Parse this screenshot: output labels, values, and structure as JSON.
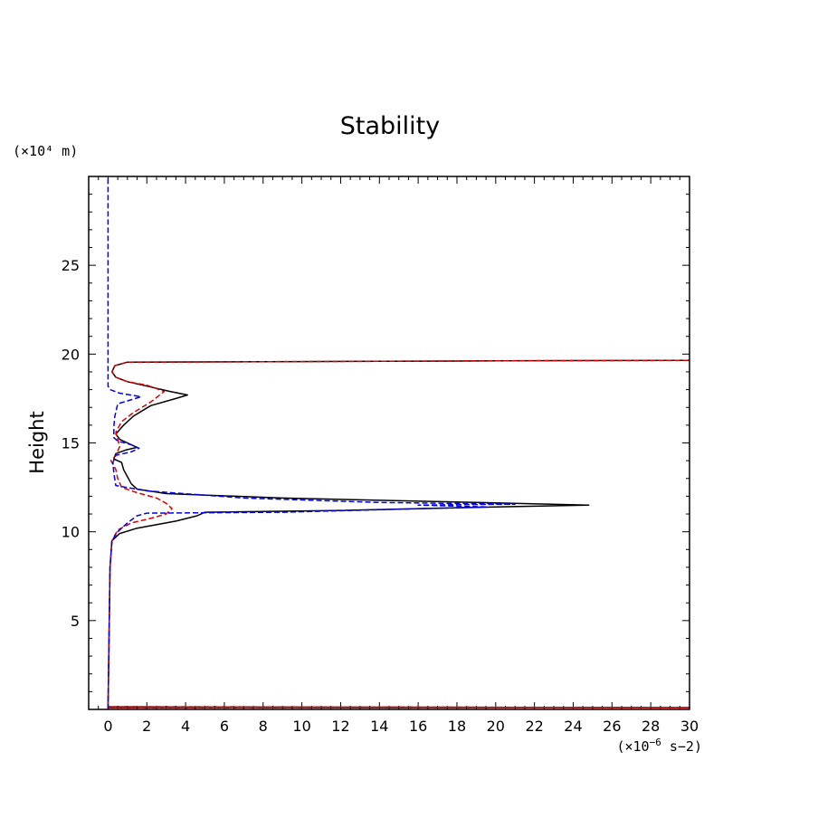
{
  "chart_data": {
    "type": "line",
    "title": "Stability",
    "ylabel": "Height",
    "xlabel": "",
    "y_unit": "(×10⁴ m)",
    "x_unit_prefix": "(×10",
    "x_unit_exp": "−6",
    "x_unit_suffix": " s−2)",
    "xlim": [
      -1,
      30
    ],
    "ylim": [
      0,
      30
    ],
    "x_ticks": [
      0,
      2,
      4,
      6,
      8,
      10,
      12,
      14,
      16,
      18,
      20,
      22,
      24,
      26,
      28,
      30
    ],
    "y_ticks": [
      5,
      10,
      15,
      20,
      25
    ],
    "grid": false,
    "series": [
      {
        "style": "solid",
        "color": "#000000",
        "points": [
          [
            0,
            0
          ],
          [
            0,
            0.1
          ],
          [
            30,
            0.1
          ],
          [
            0,
            0.15
          ],
          [
            0.1,
            8
          ],
          [
            0.2,
            9.5
          ],
          [
            0.6,
            9.9
          ],
          [
            1.5,
            10.2
          ],
          [
            3.5,
            10.6
          ],
          [
            4.6,
            10.9
          ],
          [
            5,
            11.1
          ],
          [
            12,
            11.2
          ],
          [
            20,
            11.4
          ],
          [
            24.8,
            11.5
          ],
          [
            19,
            11.65
          ],
          [
            9,
            11.9
          ],
          [
            3,
            12.15
          ],
          [
            1.5,
            12.4
          ],
          [
            1.2,
            12.7
          ],
          [
            0.8,
            13.5
          ],
          [
            0.7,
            13.9
          ],
          [
            0.3,
            14.1
          ],
          [
            0.4,
            14.4
          ],
          [
            0.9,
            14.6
          ],
          [
            1.5,
            14.75
          ],
          [
            1.1,
            14.95
          ],
          [
            0.6,
            15.2
          ],
          [
            0.4,
            15.5
          ],
          [
            0.8,
            16
          ],
          [
            1.3,
            16.5
          ],
          [
            2.2,
            17.1
          ],
          [
            3.5,
            17.5
          ],
          [
            4.1,
            17.7
          ],
          [
            3.2,
            17.9
          ],
          [
            2,
            18.2
          ],
          [
            1,
            18.45
          ],
          [
            0.4,
            18.7
          ],
          [
            0.2,
            19
          ],
          [
            0.35,
            19.35
          ],
          [
            1,
            19.55
          ],
          [
            10,
            19.58
          ],
          [
            20,
            19.62
          ],
          [
            30,
            19.65
          ]
        ]
      },
      {
        "style": "dashed",
        "color": "#dd0000",
        "points": [
          [
            0,
            0
          ],
          [
            0,
            0.1
          ],
          [
            15,
            0.13
          ],
          [
            30,
            0.1
          ],
          [
            0,
            0.15
          ],
          [
            0.1,
            8
          ],
          [
            0.2,
            9.5
          ],
          [
            0.5,
            10.1
          ],
          [
            1.2,
            10.5
          ],
          [
            2.2,
            10.75
          ],
          [
            3,
            11
          ],
          [
            3.3,
            11.3
          ],
          [
            3,
            11.6
          ],
          [
            2.5,
            11.9
          ],
          [
            1.5,
            12.2
          ],
          [
            0.7,
            12.5
          ],
          [
            0.5,
            13
          ],
          [
            0.4,
            13.5
          ],
          [
            0.15,
            14
          ],
          [
            0.4,
            14.3
          ],
          [
            0.6,
            14.8
          ],
          [
            0.5,
            15.2
          ],
          [
            0.4,
            15.6
          ],
          [
            0.7,
            16.2
          ],
          [
            1.3,
            16.7
          ],
          [
            2.2,
            17.3
          ],
          [
            2.9,
            17.9
          ],
          [
            2,
            18.25
          ],
          [
            1,
            18.45
          ],
          [
            0.4,
            18.7
          ],
          [
            0.2,
            19
          ],
          [
            0.35,
            19.35
          ],
          [
            1,
            19.55
          ],
          [
            10,
            19.58
          ],
          [
            20,
            19.62
          ],
          [
            30,
            19.65
          ]
        ]
      },
      {
        "style": "dashed",
        "color": "#0000ee",
        "points": [
          [
            0,
            0
          ],
          [
            0,
            0.1
          ],
          [
            0,
            0.15
          ],
          [
            0.1,
            8
          ],
          [
            0.2,
            9.5
          ],
          [
            0.5,
            10
          ],
          [
            1,
            10.5
          ],
          [
            1.5,
            10.9
          ],
          [
            2,
            11.05
          ],
          [
            9,
            11.1
          ],
          [
            19.5,
            11.4
          ],
          [
            16,
            11.5
          ],
          [
            21,
            11.55
          ],
          [
            14,
            11.65
          ],
          [
            7,
            11.9
          ],
          [
            2,
            12.3
          ],
          [
            0.4,
            12.6
          ],
          [
            0.3,
            13.3
          ],
          [
            0.25,
            13.9
          ],
          [
            0.4,
            14.3
          ],
          [
            1.2,
            14.5
          ],
          [
            1.6,
            14.7
          ],
          [
            1.2,
            14.9
          ],
          [
            0.5,
            15.1
          ],
          [
            0.3,
            15.3
          ],
          [
            0.3,
            15.9
          ],
          [
            0.35,
            16.5
          ],
          [
            0.5,
            17.2
          ],
          [
            1.7,
            17.6
          ],
          [
            0.6,
            17.8
          ],
          [
            0.1,
            18
          ],
          [
            0,
            18.2
          ],
          [
            0,
            30
          ]
        ]
      }
    ]
  }
}
